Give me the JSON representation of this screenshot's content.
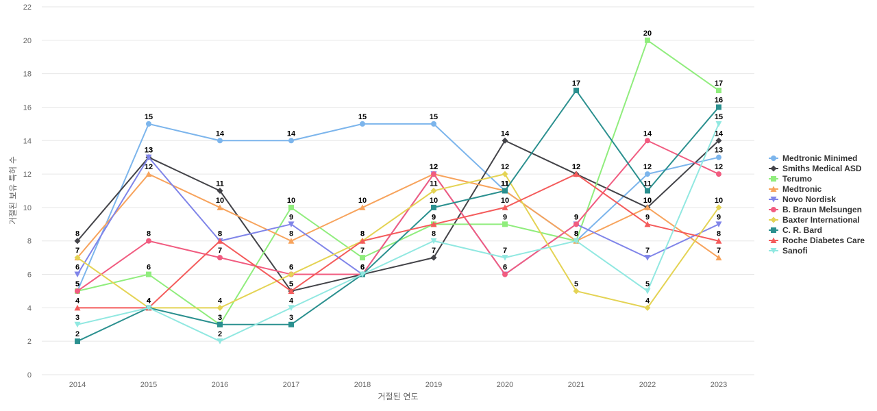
{
  "chart_data": {
    "type": "line",
    "xlabel": "거절된 연도",
    "ylabel": "거절된 보유 특허 수",
    "ylim": [
      0,
      22
    ],
    "yticks": [
      0,
      2,
      4,
      6,
      8,
      10,
      12,
      14,
      16,
      18,
      20,
      22
    ],
    "categories": [
      "2014",
      "2015",
      "2016",
      "2017",
      "2018",
      "2019",
      "2020",
      "2021",
      "2022",
      "2023"
    ],
    "grid": true,
    "legend_position": "right",
    "series": [
      {
        "name": "Medtronic Minimed",
        "color": "#7cb5ec",
        "marker": "circle",
        "values": [
          5,
          15,
          14,
          14,
          15,
          15,
          11,
          8,
          12,
          13
        ]
      },
      {
        "name": "Smiths Medical ASD",
        "color": "#434348",
        "marker": "diamond",
        "values": [
          8,
          13,
          11,
          5,
          6,
          7,
          14,
          12,
          10,
          14
        ]
      },
      {
        "name": "Terumo",
        "color": "#90ed7d",
        "marker": "square",
        "values": [
          5,
          6,
          3,
          10,
          7,
          9,
          9,
          8,
          20,
          17
        ]
      },
      {
        "name": "Medtronic",
        "color": "#f7a35c",
        "marker": "triangle",
        "values": [
          7,
          12,
          10,
          8,
          10,
          12,
          11,
          8,
          10,
          7
        ]
      },
      {
        "name": "Novo Nordisk",
        "color": "#8085e9",
        "marker": "triangle-down",
        "values": [
          6,
          13,
          8,
          9,
          6,
          12,
          6,
          9,
          7,
          9
        ]
      },
      {
        "name": "B. Braun Melsungen",
        "color": "#f15c80",
        "marker": "circle",
        "values": [
          5,
          8,
          7,
          6,
          6,
          12,
          6,
          9,
          14,
          12
        ]
      },
      {
        "name": "Baxter International",
        "color": "#e4d354",
        "marker": "diamond",
        "values": [
          7,
          4,
          4,
          6,
          8,
          11,
          12,
          5,
          4,
          10
        ]
      },
      {
        "name": "C. R. Bard",
        "color": "#2b908f",
        "marker": "square",
        "values": [
          2,
          4,
          3,
          3,
          6,
          10,
          11,
          17,
          11,
          16
        ]
      },
      {
        "name": "Roche Diabetes Care",
        "color": "#f45b5b",
        "marker": "triangle",
        "values": [
          4,
          4,
          8,
          5,
          8,
          9,
          10,
          12,
          9,
          8
        ]
      },
      {
        "name": "Sanofi",
        "color": "#91e8e1",
        "marker": "triangle-down",
        "values": [
          3,
          4,
          2,
          4,
          6,
          8,
          7,
          8,
          5,
          15
        ]
      }
    ]
  }
}
